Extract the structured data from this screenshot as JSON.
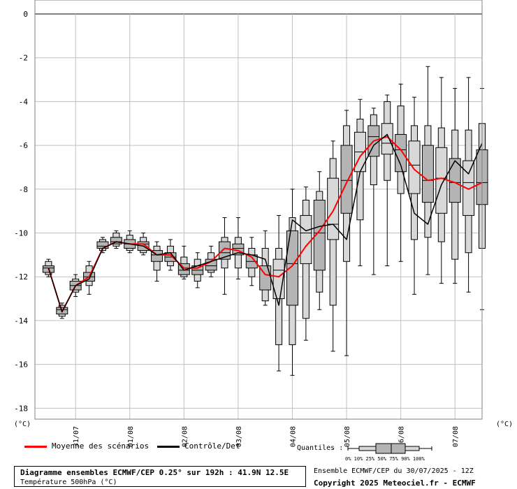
{
  "chart_data": {
    "type": "boxplot",
    "title": "Diagramme ensembles ECMWF/CEP 0.25° sur 192h : 41.9N 12.5E",
    "subtitle": "Température 500hPa (°C)",
    "ylabel_left": "(°C)",
    "ylabel_right": "(°C)",
    "ylim": [
      -18.5,
      0
    ],
    "yticks": [
      0,
      -2,
      -4,
      -6,
      -8,
      -10,
      -12,
      -14,
      -16,
      -18
    ],
    "grid": true,
    "x_range_hours": [
      -6,
      192
    ],
    "date_ticks": [
      {
        "label": "31/07",
        "hour": 12
      },
      {
        "label": "01/08",
        "hour": 36
      },
      {
        "label": "02/08",
        "hour": 60
      },
      {
        "label": "03/08",
        "hour": 84
      },
      {
        "label": "04/08",
        "hour": 108
      },
      {
        "label": "05/08",
        "hour": 132
      },
      {
        "label": "06/08",
        "hour": 156
      },
      {
        "label": "07/08",
        "hour": 180
      }
    ],
    "boxes": [
      {
        "hour": 0,
        "p0": -12.0,
        "p10": -11.9,
        "p25": -11.8,
        "p50": -11.6,
        "p75": -11.5,
        "p90": -11.3,
        "p100": -11.2,
        "shade": "gray"
      },
      {
        "hour": 6,
        "p0": -13.9,
        "p10": -13.8,
        "p25": -13.7,
        "p50": -13.5,
        "p75": -13.4,
        "p90": -13.3,
        "p100": -13.2,
        "shade": "gray"
      },
      {
        "hour": 12,
        "p0": -12.9,
        "p10": -12.7,
        "p25": -12.6,
        "p50": -12.4,
        "p75": -12.2,
        "p90": -12.1,
        "p100": -11.9,
        "shade": "gray"
      },
      {
        "hour": 18,
        "p0": -12.8,
        "p10": -12.4,
        "p25": -12.2,
        "p50": -12.0,
        "p75": -11.8,
        "p90": -11.5,
        "p100": -11.3,
        "shade": "gray"
      },
      {
        "hour": 24,
        "p0": -10.9,
        "p10": -10.8,
        "p25": -10.7,
        "p50": -10.6,
        "p75": -10.4,
        "p90": -10.3,
        "p100": -10.2,
        "shade": "gray"
      },
      {
        "hour": 30,
        "p0": -10.7,
        "p10": -10.6,
        "p25": -10.5,
        "p50": -10.4,
        "p75": -10.2,
        "p90": -10.0,
        "p100": -9.9,
        "shade": "gray"
      },
      {
        "hour": 36,
        "p0": -10.9,
        "p10": -10.8,
        "p25": -10.7,
        "p50": -10.5,
        "p75": -10.3,
        "p90": -10.1,
        "p100": -9.9,
        "shade": "gray"
      },
      {
        "hour": 42,
        "p0": -11.0,
        "p10": -10.9,
        "p25": -10.8,
        "p50": -10.5,
        "p75": -10.4,
        "p90": -10.2,
        "p100": -10.0,
        "shade": "gray"
      },
      {
        "hour": 48,
        "p0": -12.2,
        "p10": -11.7,
        "p25": -11.3,
        "p50": -11.0,
        "p75": -10.8,
        "p90": -10.6,
        "p100": -10.4,
        "shade": "gray"
      },
      {
        "hour": 54,
        "p0": -11.7,
        "p10": -11.5,
        "p25": -11.3,
        "p50": -11.1,
        "p75": -10.9,
        "p90": -10.6,
        "p100": -10.3,
        "shade": "gray"
      },
      {
        "hour": 60,
        "p0": -12.1,
        "p10": -12.0,
        "p25": -11.9,
        "p50": -11.7,
        "p75": -11.4,
        "p90": -11.1,
        "p100": -10.6,
        "shade": "gray"
      },
      {
        "hour": 66,
        "p0": -12.5,
        "p10": -12.2,
        "p25": -11.9,
        "p50": -11.7,
        "p75": -11.5,
        "p90": -11.2,
        "p100": -10.9,
        "shade": "gray"
      },
      {
        "hour": 72,
        "p0": -12.0,
        "p10": -11.8,
        "p25": -11.7,
        "p50": -11.5,
        "p75": -11.2,
        "p90": -10.9,
        "p100": -10.6,
        "shade": "gray"
      },
      {
        "hour": 78,
        "p0": -12.8,
        "p10": -11.6,
        "p25": -11.2,
        "p50": -10.9,
        "p75": -10.4,
        "p90": -10.2,
        "p100": -9.3,
        "shade": "gray"
      },
      {
        "hour": 84,
        "p0": -12.1,
        "p10": -11.6,
        "p25": -11.0,
        "p50": -10.7,
        "p75": -10.5,
        "p90": -10.2,
        "p100": -9.3,
        "shade": "gray"
      },
      {
        "hour": 90,
        "p0": -12.4,
        "p10": -12.0,
        "p25": -11.6,
        "p50": -11.3,
        "p75": -11.0,
        "p90": -10.7,
        "p100": -10.2,
        "shade": "gray"
      },
      {
        "hour": 96,
        "p0": -13.3,
        "p10": -13.1,
        "p25": -12.6,
        "p50": -11.5,
        "p75": -11.5,
        "p90": -10.7,
        "p100": -9.9,
        "shade": "gray"
      },
      {
        "hour": 102,
        "p0": -16.3,
        "p10": -15.1,
        "p25": -13.0,
        "p50": -11.7,
        "p75": -11.2,
        "p90": -10.7,
        "p100": -9.2,
        "shade": "light"
      },
      {
        "hour": 108,
        "p0": -16.5,
        "p10": -15.1,
        "p25": -13.3,
        "p50": -11.4,
        "p75": -9.9,
        "p90": -9.3,
        "p100": -8.0,
        "shade": "gray"
      },
      {
        "hour": 114,
        "p0": -14.9,
        "p10": -13.9,
        "p25": -11.4,
        "p50": -10.0,
        "p75": -9.2,
        "p90": -8.5,
        "p100": -7.9,
        "shade": "light"
      },
      {
        "hour": 120,
        "p0": -13.5,
        "p10": -12.7,
        "p25": -11.7,
        "p50": -10.0,
        "p75": -8.5,
        "p90": -8.1,
        "p100": -7.2,
        "shade": "gray"
      },
      {
        "hour": 126,
        "p0": -15.4,
        "p10": -13.3,
        "p25": -10.3,
        "p50": -9.6,
        "p75": -7.5,
        "p90": -6.6,
        "p100": -5.8,
        "shade": "light"
      },
      {
        "hour": 132,
        "p0": -15.6,
        "p10": -11.3,
        "p25": -9.1,
        "p50": -7.6,
        "p75": -6.0,
        "p90": -5.1,
        "p100": -4.4,
        "shade": "gray"
      },
      {
        "hour": 138,
        "p0": -11.5,
        "p10": -9.4,
        "p25": -7.2,
        "p50": -6.3,
        "p75": -5.4,
        "p90": -4.8,
        "p100": -3.9,
        "shade": "light"
      },
      {
        "hour": 144,
        "p0": -11.9,
        "p10": -7.8,
        "p25": -6.5,
        "p50": -5.6,
        "p75": -5.1,
        "p90": -4.6,
        "p100": -4.3,
        "shade": "gray"
      },
      {
        "hour": 150,
        "p0": -11.5,
        "p10": -7.6,
        "p25": -6.4,
        "p50": -5.9,
        "p75": -5.0,
        "p90": -4.0,
        "p100": -3.7,
        "shade": "light"
      },
      {
        "hour": 156,
        "p0": -11.3,
        "p10": -8.2,
        "p25": -7.2,
        "p50": -6.2,
        "p75": -5.5,
        "p90": -4.2,
        "p100": -3.2,
        "shade": "gray"
      },
      {
        "hour": 162,
        "p0": -12.8,
        "p10": -10.3,
        "p25": -8.2,
        "p50": -6.9,
        "p75": -5.8,
        "p90": -5.1,
        "p100": -3.8,
        "shade": "light"
      },
      {
        "hour": 168,
        "p0": -11.9,
        "p10": -10.2,
        "p25": -8.6,
        "p50": -7.6,
        "p75": -6.0,
        "p90": -5.1,
        "p100": -2.4,
        "shade": "gray"
      },
      {
        "hour": 174,
        "p0": -12.3,
        "p10": -10.4,
        "p25": -9.1,
        "p50": -7.5,
        "p75": -6.1,
        "p90": -5.2,
        "p100": -2.9,
        "shade": "light"
      },
      {
        "hour": 180,
        "p0": -12.3,
        "p10": -11.2,
        "p25": -8.6,
        "p50": -7.7,
        "p75": -6.6,
        "p90": -5.3,
        "p100": -3.4,
        "shade": "gray"
      },
      {
        "hour": 186,
        "p0": -12.7,
        "p10": -10.9,
        "p25": -9.2,
        "p50": -7.7,
        "p75": -6.7,
        "p90": -5.3,
        "p100": -2.9,
        "shade": "light"
      },
      {
        "hour": 192,
        "p0": -13.5,
        "p10": -10.7,
        "p25": -8.7,
        "p50": -7.7,
        "p75": -6.2,
        "p90": -5.0,
        "p100": -3.4,
        "shade": "gray"
      }
    ],
    "series": [
      {
        "name": "Moyenne des scénarios",
        "color": "#ff0000",
        "x": [
          0,
          6,
          12,
          18,
          24,
          30,
          36,
          42,
          48,
          54,
          60,
          66,
          72,
          78,
          84,
          90,
          96,
          102,
          108,
          114,
          120,
          126,
          132,
          138,
          144,
          150,
          156,
          162,
          168,
          174,
          180,
          186,
          192
        ],
        "values": [
          -11.6,
          -13.6,
          -12.4,
          -12.0,
          -10.7,
          -10.4,
          -10.5,
          -10.5,
          -11.0,
          -11.0,
          -11.6,
          -11.6,
          -11.3,
          -10.7,
          -10.8,
          -11.1,
          -11.9,
          -12.0,
          -11.5,
          -10.6,
          -9.9,
          -9.0,
          -7.7,
          -6.5,
          -5.8,
          -5.6,
          -6.2,
          -7.1,
          -7.6,
          -7.5,
          -7.7,
          -8.0,
          -7.7
        ]
      },
      {
        "name": "Contrôle/Det",
        "color": "#000000",
        "x": [
          0,
          6,
          12,
          18,
          24,
          30,
          36,
          42,
          48,
          54,
          60,
          66,
          72,
          78,
          84,
          90,
          96,
          102,
          108,
          114,
          120,
          126,
          132,
          138,
          144,
          150,
          156,
          162,
          168,
          174,
          180,
          186,
          192
        ],
        "values": [
          -11.6,
          -13.6,
          -12.4,
          -12.1,
          -10.7,
          -10.4,
          -10.5,
          -10.6,
          -11.0,
          -10.9,
          -11.7,
          -11.5,
          -11.3,
          -11.1,
          -10.9,
          -11.0,
          -11.2,
          -13.3,
          -9.4,
          -9.9,
          -9.7,
          -9.6,
          -10.3,
          -7.2,
          -6.0,
          -5.5,
          -6.9,
          -9.1,
          -9.6,
          -7.8,
          -6.7,
          -7.3,
          -5.9
        ]
      }
    ]
  },
  "legend": {
    "mean_label": "Moyenne des scénarios",
    "mean_color": "#ff0000",
    "det_label": "Contrôle/Det",
    "det_color": "#000000"
  },
  "quantiles": {
    "label": "Quantiles :",
    "key_labels": "0%  10% 25% 50% 75% 90% 100%"
  },
  "footer": {
    "title_line1": "Diagramme ensembles ECMWF/CEP 0.25° sur 192h : 41.9N 12.5E",
    "title_line2": "Température 500hPa (°C)",
    "run_info": "Ensemble ECMWF/CEP du 30/07/2025 - 12Z",
    "copyright": "Copyright 2025 Meteociel.fr - ECMWF"
  },
  "colors": {
    "box_gray": "#b4b4b4",
    "box_light": "#d8d8d8",
    "grid": "#c0c0c0"
  }
}
